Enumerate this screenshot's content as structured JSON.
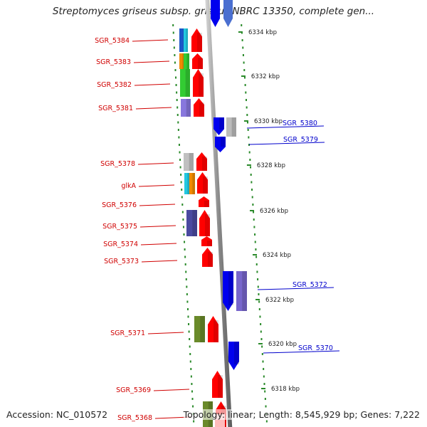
{
  "title": "Streptomyces griseus subsp. griseus NBRC 13350, complete gen...",
  "footer": {
    "accession": "Accession: NC_010572",
    "topology": "Topology: linear; Length: 8,545,929 bp; Genes: 7,222"
  },
  "colors": {
    "forward_label": "#d00000",
    "reverse_label": "#0000cc",
    "forward_arrow": "#ff0000",
    "reverse_arrow": "#0000ee",
    "tick": "#2a8a2a",
    "backbone": "#8a8a8a"
  },
  "scale": {
    "unit": "kbp",
    "ticks": [
      "6334 kbp",
      "6332 kbp",
      "6330 kbp",
      "6328 kbp",
      "6326 kbp",
      "6324 kbp",
      "6322 kbp",
      "6320 kbp",
      "6318 kbp"
    ]
  },
  "forward_genes": [
    {
      "label": "SGR_5384"
    },
    {
      "label": "SGR_5383"
    },
    {
      "label": "SGR_5382"
    },
    {
      "label": "SGR_5381"
    },
    {
      "label": "SGR_5378"
    },
    {
      "label": "glkA"
    },
    {
      "label": "SGR_5376"
    },
    {
      "label": "SGR_5375"
    },
    {
      "label": "SGR_5374"
    },
    {
      "label": "SGR_5373"
    },
    {
      "label": "SGR_5371"
    },
    {
      "label": "SGR_5369"
    },
    {
      "label": "SGR_5368"
    }
  ],
  "reverse_genes": [
    {
      "label": "SGR_5380"
    },
    {
      "label": "SGR_5379"
    },
    {
      "label": "SGR_5372"
    },
    {
      "label": "SGR_5370"
    }
  ]
}
